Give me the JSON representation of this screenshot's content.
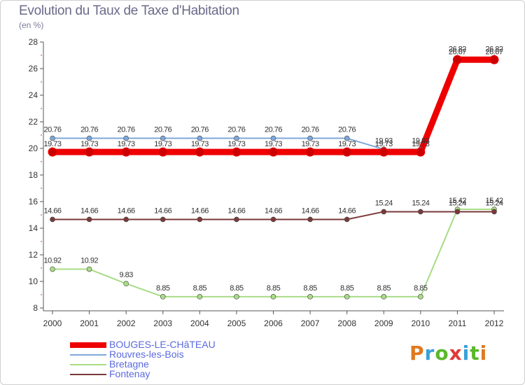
{
  "title": "Evolution du Taux de Taxe d'Habitation",
  "unit_label": "(en %)",
  "brand": {
    "name": "Proxiti",
    "letter_colors": [
      "#e07a1e",
      "#3aa0d8",
      "#5ab82a",
      "#e03a3a",
      "#3aa0d8",
      "#5ab82a",
      "#e07a1e"
    ]
  },
  "chart_data": {
    "type": "line",
    "title": "Evolution du Taux de Taxe d'Habitation",
    "ylabel": "(en %)",
    "xlabel": "",
    "ylim": [
      8,
      28
    ],
    "yticks": [
      8,
      10,
      12,
      14,
      16,
      18,
      20,
      22,
      24,
      26,
      28
    ],
    "grid": false,
    "legend_position": "bottom-left",
    "x": [
      "2000",
      "2001",
      "2002",
      "2003",
      "2004",
      "2005",
      "2006",
      "2007",
      "2008",
      "2009",
      "2010",
      "2011",
      "2012"
    ],
    "series": [
      {
        "name": "BOUGES-LE-CHâTEAU",
        "color": "#ee0000",
        "values": [
          19.73,
          19.73,
          19.73,
          19.73,
          19.73,
          19.73,
          19.73,
          19.73,
          19.73,
          19.73,
          19.73,
          26.67,
          26.67
        ],
        "labels": [
          "19.73",
          "19.73",
          "19.73",
          "19.73",
          "19.73",
          "19.73",
          "19.73",
          "19.73",
          "19.73",
          "19.73",
          "19.73",
          "26.67",
          "26.67"
        ]
      },
      {
        "name": "Rouvres-les-Bois",
        "color": "#7fa7d8",
        "values": [
          20.76,
          20.76,
          20.76,
          20.76,
          20.76,
          20.76,
          20.76,
          20.76,
          20.76,
          19.93,
          19.93,
          26.82,
          26.82
        ],
        "labels": [
          "20.76",
          "20.76",
          "20.76",
          "20.76",
          "20.76",
          "20.76",
          "20.76",
          "20.76",
          "20.76",
          "19.93",
          "19.93",
          "26.82",
          "26.82"
        ]
      },
      {
        "name": "Bretagne",
        "color": "#a8dc86",
        "values": [
          10.92,
          10.92,
          9.83,
          8.85,
          8.85,
          8.85,
          8.85,
          8.85,
          8.85,
          8.85,
          8.85,
          15.42,
          15.42
        ],
        "labels": [
          "10.92",
          "10.92",
          "9.83",
          "8.85",
          "8.85",
          "8.85",
          "8.85",
          "8.85",
          "8.85",
          "8.85",
          "8.85",
          "15.42",
          "15.42"
        ]
      },
      {
        "name": "Fontenay",
        "color": "#7a3a3a",
        "values": [
          14.66,
          14.66,
          14.66,
          14.66,
          14.66,
          14.66,
          14.66,
          14.66,
          14.66,
          15.24,
          15.24,
          15.24,
          15.24
        ],
        "labels": [
          "14.66",
          "14.66",
          "14.66",
          "14.66",
          "14.66",
          "14.66",
          "14.66",
          "14.66",
          "14.66",
          "15.24",
          "15.24",
          "15.24",
          "15.24"
        ]
      }
    ]
  }
}
